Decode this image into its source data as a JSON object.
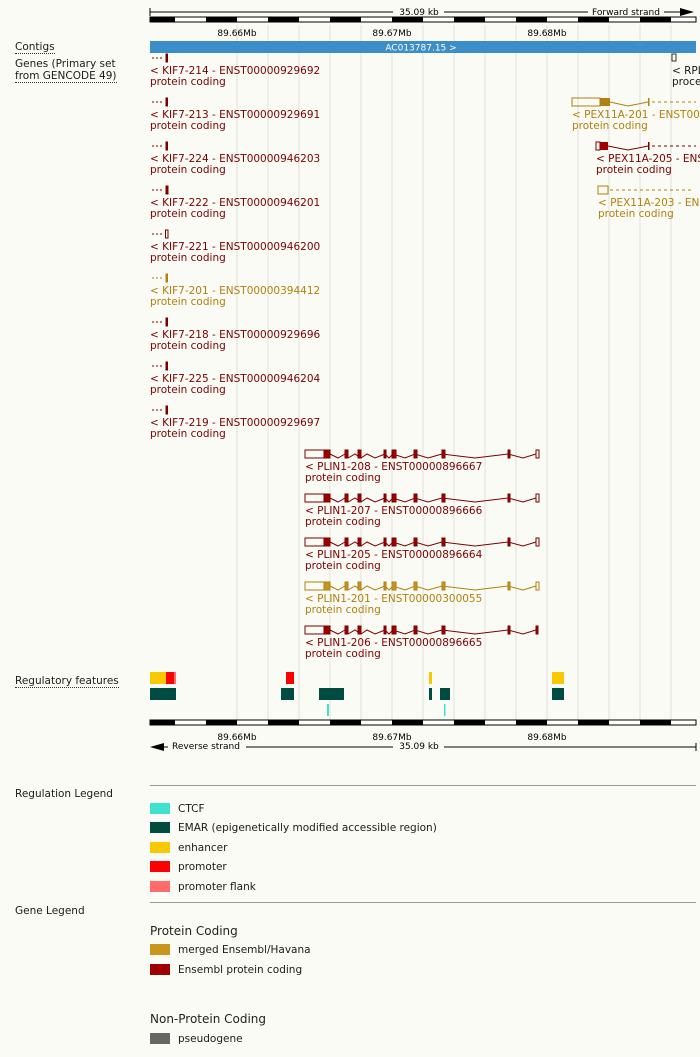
{
  "ruler": {
    "span": "35.09 kb",
    "forward": "Forward strand",
    "reverse": "Reverse strand",
    "ticks": [
      "89.66Mb",
      "89.67Mb",
      "89.68Mb"
    ]
  },
  "tracks": {
    "contigs": "Contigs",
    "genes_line1": "Genes (Primary set",
    "genes_line2": "from GENCODE 49)",
    "regulatory": "Regulatory features"
  },
  "contig": {
    "name": "AC013787.15 >",
    "color": "#3b8ec8"
  },
  "genes": [
    {
      "name": "< KIF7-214 - ENST00000929692",
      "type": "protein coding",
      "color": "#7a0000"
    },
    {
      "name": "< KIF7-213 - ENST00000929691",
      "type": "protein coding",
      "color": "#7a0000"
    },
    {
      "name": "< KIF7-224 - ENST00000946203",
      "type": "protein coding",
      "color": "#7a0000"
    },
    {
      "name": "< KIF7-222 - ENST00000946201",
      "type": "protein coding",
      "color": "#7a0000"
    },
    {
      "name": "< KIF7-221 - ENST00000946200",
      "type": "protein coding",
      "color": "#7a0000"
    },
    {
      "name": "< KIF7-201 - ENST00000394412",
      "type": "protein coding",
      "color": "#b08010"
    },
    {
      "name": "< KIF7-218 - ENST00000929696",
      "type": "protein coding",
      "color": "#7a0000"
    },
    {
      "name": "< KIF7-225 - ENST00000946204",
      "type": "protein coding",
      "color": "#7a0000"
    },
    {
      "name": "< KIF7-219 - ENST00000929697",
      "type": "protein coding",
      "color": "#7a0000"
    },
    {
      "name": "< PLIN1-208 - ENST00000896667",
      "type": "protein coding",
      "color": "#7a0000"
    },
    {
      "name": "< PLIN1-207 - ENST00000896666",
      "type": "protein coding",
      "color": "#7a0000"
    },
    {
      "name": "< PLIN1-205 - ENST00000896664",
      "type": "protein coding",
      "color": "#7a0000"
    },
    {
      "name": "< PLIN1-201 - ENST00000300055",
      "type": "protein coding",
      "color": "#b08010"
    },
    {
      "name": "< PLIN1-206 - ENST00000896665",
      "type": "protein coding",
      "color": "#7a0000"
    }
  ],
  "right_genes": [
    {
      "name": "< RPL",
      "type": "proce",
      "color": "#1a1a1a"
    },
    {
      "name": "< PEX11A-201 - ENST00",
      "type": "protein coding",
      "color": "#b08010"
    },
    {
      "name": "< PEX11A-205 - ENS",
      "type": "protein coding",
      "color": "#7a0000"
    },
    {
      "name": "< PEX11A-203 - EN",
      "type": "protein coding",
      "color": "#b08010"
    }
  ],
  "regulation_legend": {
    "title": "Regulation Legend",
    "items": [
      {
        "label": "CTCF",
        "color": "#40e0d0"
      },
      {
        "label": "EMAR (epigenetically modified accessible region)",
        "color": "#004c40"
      },
      {
        "label": "enhancer",
        "color": "#f8c800"
      },
      {
        "label": "promoter",
        "color": "#ff0000"
      },
      {
        "label": "promoter flank",
        "color": "#ff6a6a"
      }
    ]
  },
  "gene_legend": {
    "title": "Gene Legend",
    "protein_coding_head": "Protein Coding",
    "protein_items": [
      {
        "label": "merged Ensembl/Havana",
        "color": "#c8961e"
      },
      {
        "label": "Ensembl protein coding",
        "color": "#a00000"
      }
    ],
    "non_protein_head": "Non-Protein Coding",
    "non_protein_items": [
      {
        "label": "pseudogene",
        "color": "#666666"
      }
    ]
  }
}
